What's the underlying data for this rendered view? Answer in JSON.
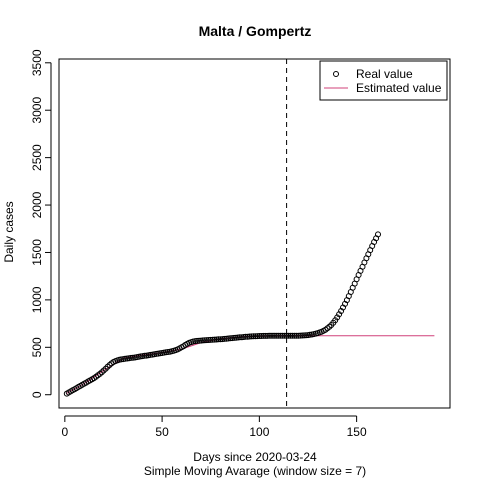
{
  "chart_data": {
    "type": "scatter",
    "title": "Malta / Gompertz",
    "xlabel": "Days since 2020-03-24",
    "subtitle": "Simple Moving Avarage (window size = 7)",
    "ylabel": "Daily cases",
    "xlim": [
      -3,
      198
    ],
    "ylim": [
      -140,
      3540
    ],
    "x_ticks": [
      0,
      50,
      100,
      150
    ],
    "y_ticks": [
      0,
      500,
      1000,
      1500,
      2000,
      2500,
      3000,
      3500
    ],
    "vline_x": 114,
    "grid": false,
    "legend_position": "top-right",
    "legend": [
      {
        "label": "Real value",
        "marker": "circle"
      },
      {
        "label": "Estimated value",
        "marker": "line"
      }
    ],
    "real_points": [
      [
        1,
        12
      ],
      [
        2,
        23
      ],
      [
        3,
        35
      ],
      [
        4,
        47
      ],
      [
        5,
        58
      ],
      [
        6,
        70
      ],
      [
        7,
        82
      ],
      [
        8,
        93
      ],
      [
        9,
        105
      ],
      [
        10,
        117
      ],
      [
        11,
        128
      ],
      [
        12,
        140
      ],
      [
        13,
        151
      ],
      [
        14,
        163
      ],
      [
        15,
        175
      ],
      [
        16,
        190
      ],
      [
        17,
        205
      ],
      [
        18,
        220
      ],
      [
        19,
        236
      ],
      [
        20,
        255
      ],
      [
        21,
        274
      ],
      [
        22,
        294
      ],
      [
        23,
        313
      ],
      [
        24,
        330
      ],
      [
        25,
        345
      ],
      [
        26,
        355
      ],
      [
        27,
        362
      ],
      [
        28,
        368
      ],
      [
        29,
        372
      ],
      [
        30,
        376
      ],
      [
        31,
        379
      ],
      [
        32,
        382
      ],
      [
        33,
        385
      ],
      [
        34,
        388
      ],
      [
        35,
        390
      ],
      [
        36,
        393
      ],
      [
        37,
        397
      ],
      [
        38,
        400
      ],
      [
        39,
        404
      ],
      [
        40,
        407
      ],
      [
        41,
        410
      ],
      [
        42,
        413
      ],
      [
        43,
        417
      ],
      [
        44,
        420
      ],
      [
        45,
        423
      ],
      [
        46,
        427
      ],
      [
        47,
        430
      ],
      [
        48,
        434
      ],
      [
        49,
        437
      ],
      [
        50,
        440
      ],
      [
        51,
        444
      ],
      [
        52,
        447
      ],
      [
        53,
        450
      ],
      [
        54,
        454
      ],
      [
        55,
        458
      ],
      [
        56,
        463
      ],
      [
        57,
        470
      ],
      [
        58,
        478
      ],
      [
        59,
        488
      ],
      [
        60,
        500
      ],
      [
        61,
        512
      ],
      [
        62,
        525
      ],
      [
        63,
        537
      ],
      [
        64,
        547
      ],
      [
        65,
        555
      ],
      [
        66,
        561
      ],
      [
        67,
        565
      ],
      [
        68,
        568
      ],
      [
        69,
        570
      ],
      [
        70,
        571
      ],
      [
        71,
        573
      ],
      [
        72,
        574
      ],
      [
        73,
        576
      ],
      [
        74,
        577
      ],
      [
        75,
        578
      ],
      [
        76,
        579
      ],
      [
        77,
        581
      ],
      [
        78,
        582
      ],
      [
        79,
        584
      ],
      [
        80,
        585
      ],
      [
        81,
        587
      ],
      [
        82,
        589
      ],
      [
        83,
        591
      ],
      [
        84,
        593
      ],
      [
        85,
        595
      ],
      [
        86,
        597
      ],
      [
        87,
        599
      ],
      [
        88,
        601
      ],
      [
        89,
        603
      ],
      [
        90,
        605
      ],
      [
        91,
        607
      ],
      [
        92,
        609
      ],
      [
        93,
        611
      ],
      [
        94,
        612
      ],
      [
        95,
        614
      ],
      [
        96,
        615
      ],
      [
        97,
        616
      ],
      [
        98,
        617
      ],
      [
        99,
        618
      ],
      [
        100,
        619
      ],
      [
        101,
        619
      ],
      [
        102,
        620
      ],
      [
        103,
        620
      ],
      [
        104,
        620
      ],
      [
        105,
        621
      ],
      [
        106,
        621
      ],
      [
        107,
        621
      ],
      [
        108,
        621
      ],
      [
        109,
        622
      ],
      [
        110,
        622
      ],
      [
        111,
        622
      ],
      [
        112,
        622
      ],
      [
        113,
        622
      ],
      [
        114,
        622
      ],
      [
        115,
        622
      ],
      [
        116,
        622
      ],
      [
        117,
        622
      ],
      [
        118,
        622
      ],
      [
        119,
        622
      ],
      [
        120,
        622
      ],
      [
        121,
        623
      ],
      [
        122,
        624
      ],
      [
        123,
        625
      ],
      [
        124,
        627
      ],
      [
        125,
        629
      ],
      [
        126,
        632
      ],
      [
        127,
        635
      ],
      [
        128,
        639
      ],
      [
        129,
        644
      ],
      [
        130,
        650
      ],
      [
        131,
        657
      ],
      [
        132,
        665
      ],
      [
        133,
        675
      ],
      [
        134,
        686
      ],
      [
        135,
        700
      ],
      [
        136,
        716
      ],
      [
        137,
        735
      ],
      [
        138,
        758
      ],
      [
        139,
        785
      ],
      [
        140,
        815
      ],
      [
        141,
        848
      ],
      [
        142,
        883
      ],
      [
        143,
        920
      ],
      [
        144,
        958
      ],
      [
        145,
        998
      ],
      [
        146,
        1040
      ],
      [
        147,
        1083
      ],
      [
        148,
        1127
      ],
      [
        149,
        1172
      ],
      [
        150,
        1217
      ],
      [
        151,
        1262
      ],
      [
        152,
        1306
      ],
      [
        153,
        1350
      ],
      [
        154,
        1394
      ],
      [
        155,
        1438
      ],
      [
        156,
        1482
      ],
      [
        157,
        1525
      ],
      [
        158,
        1568
      ],
      [
        159,
        1610
      ],
      [
        160,
        1650
      ],
      [
        161,
        1690
      ]
    ],
    "estimated_line": [
      [
        1,
        15
      ],
      [
        10,
        118
      ],
      [
        20,
        255
      ],
      [
        30,
        385
      ],
      [
        40,
        418
      ],
      [
        50,
        445
      ],
      [
        60,
        480
      ],
      [
        70,
        550
      ],
      [
        80,
        590
      ],
      [
        90,
        610
      ],
      [
        100,
        618
      ],
      [
        110,
        621
      ],
      [
        120,
        622
      ],
      [
        140,
        622
      ],
      [
        160,
        622
      ],
      [
        190,
        622
      ]
    ]
  },
  "colors": {
    "points": "#000000",
    "estimated_line": "#d0407a",
    "axes": "#000000",
    "vline": "#000000"
  }
}
